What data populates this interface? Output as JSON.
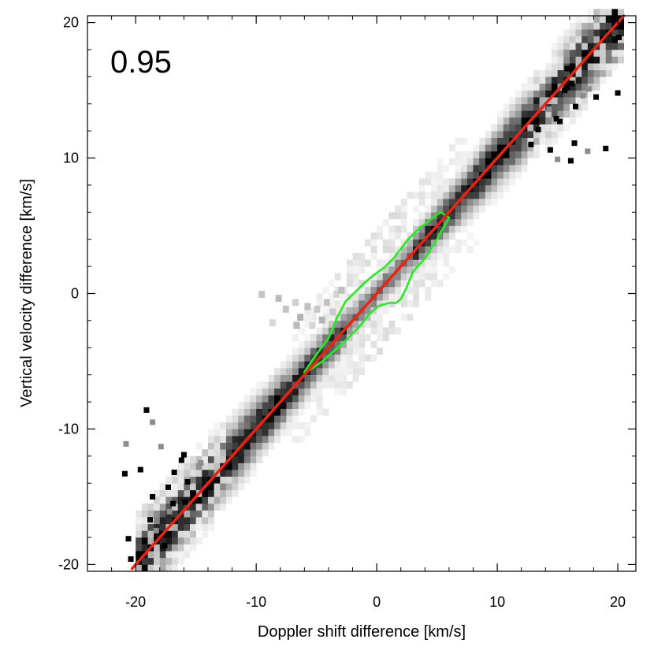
{
  "chart_data": {
    "type": "scatter",
    "xlabel": "Doppler shift difference [km/s]",
    "ylabel": "Vertical velocity difference [km/s]",
    "xlim": [
      -24,
      21.5
    ],
    "ylim": [
      -20.5,
      20.5
    ],
    "xticks": [
      -20,
      -10,
      0,
      10,
      20
    ],
    "yticks": [
      -20,
      -10,
      0,
      10,
      20
    ],
    "xtick_labels": [
      "-20",
      "-10",
      "0",
      "10",
      "20"
    ],
    "ytick_labels": [
      "-20",
      "-10",
      "0",
      "10",
      "20"
    ],
    "annotation": "0.95",
    "fit_line": {
      "color": "#ee2211",
      "slope": 1.0,
      "intercept": 0.0,
      "x": [
        -20.3,
        20.5
      ]
    },
    "contour": {
      "color": "#22ee22",
      "x": [
        -6.0,
        -5.0,
        -4.0,
        -3.3,
        -2.6,
        -1.8,
        -1.0,
        -0.2,
        0.6,
        1.4,
        2.0,
        2.6,
        3.5,
        4.5,
        5.3,
        6.0,
        5.0,
        4.0,
        3.0,
        2.5,
        2.0,
        1.6,
        1.0,
        0.2,
        -0.5,
        -1.5,
        -2.5,
        -3.5,
        -4.5,
        -5.5,
        -6.0
      ],
      "y": [
        -5.8,
        -4.5,
        -3.3,
        -1.8,
        -0.6,
        0.1,
        0.8,
        1.4,
        1.9,
        2.6,
        3.3,
        4.0,
        4.8,
        5.5,
        6.0,
        5.6,
        4.0,
        2.6,
        1.6,
        0.5,
        -0.4,
        -0.7,
        -0.7,
        -0.9,
        -1.4,
        -2.5,
        -3.4,
        -4.2,
        -5.0,
        -5.6,
        -5.8
      ]
    },
    "density": {
      "ridge": {
        "x": [
          -20,
          20
        ],
        "y": [
          -20,
          20
        ]
      },
      "outliers": [
        [
          -20.8,
          -11.1
        ],
        [
          -20.9,
          -13.3
        ],
        [
          -19.6,
          -13.0
        ],
        [
          -19.1,
          -8.6
        ],
        [
          -18.6,
          -9.5
        ],
        [
          -20.6,
          -18.1
        ],
        [
          -20.4,
          -19.6
        ],
        [
          -18.8,
          -16.7
        ],
        [
          -18.3,
          -17.5
        ],
        [
          -17.6,
          -18.6
        ],
        [
          -17.3,
          -14.3
        ],
        [
          -16.8,
          -13.2
        ],
        [
          -17.9,
          -11.3
        ],
        [
          -16.2,
          -12.3
        ],
        [
          -15.7,
          -13.9
        ],
        [
          -15.9,
          -15.4
        ],
        [
          -17.2,
          -16.1
        ],
        [
          -18.6,
          -15.0
        ],
        [
          -16.9,
          -15.5
        ],
        [
          -15.2,
          -14.8
        ],
        [
          -14.6,
          -12.5
        ],
        [
          -16.0,
          -11.9
        ],
        [
          15.8,
          16.6
        ],
        [
          16.2,
          15.5
        ],
        [
          17.1,
          14.6
        ],
        [
          16.5,
          13.8
        ],
        [
          15.2,
          12.7
        ],
        [
          16.4,
          11.1
        ],
        [
          17.5,
          10.5
        ],
        [
          16.1,
          9.8
        ],
        [
          19.0,
          10.7
        ],
        [
          18.2,
          14.5
        ],
        [
          17.6,
          15.1
        ],
        [
          20.0,
          14.8
        ],
        [
          20.1,
          18.9
        ],
        [
          14.9,
          12.9
        ],
        [
          14.3,
          13.6
        ],
        [
          15.6,
          15.0
        ],
        [
          13.4,
          12.1
        ],
        [
          12.8,
          11.0
        ],
        [
          15.0,
          9.9
        ],
        [
          14.4,
          10.6
        ]
      ],
      "lobe": [
        [
          -9.8,
          -0.3
        ],
        [
          -8.4,
          -0.6
        ],
        [
          -7.0,
          -0.9
        ],
        [
          -6.0,
          -1.2
        ],
        [
          -5.2,
          -1.4
        ],
        [
          -4.4,
          -0.9
        ],
        [
          -3.6,
          -0.3
        ],
        [
          -6.6,
          -2.0
        ],
        [
          -5.6,
          -2.6
        ],
        [
          -4.8,
          -2.2
        ],
        [
          -3.9,
          -1.6
        ],
        [
          -7.8,
          -1.4
        ],
        [
          -6.9,
          -2.6
        ],
        [
          -8.9,
          -2.4
        ],
        [
          -3.2,
          0.0
        ]
      ]
    }
  }
}
